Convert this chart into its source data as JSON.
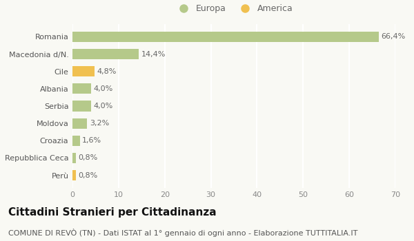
{
  "categories": [
    "Romania",
    "Macedonia d/N.",
    "Cile",
    "Albania",
    "Serbia",
    "Moldova",
    "Croazia",
    "Repubblica Ceca",
    "Perù"
  ],
  "values": [
    66.4,
    14.4,
    4.8,
    4.0,
    4.0,
    3.2,
    1.6,
    0.8,
    0.8
  ],
  "labels": [
    "66,4%",
    "14,4%",
    "4,8%",
    "4,0%",
    "4,0%",
    "3,2%",
    "1,6%",
    "0,8%",
    "0,8%"
  ],
  "colors": [
    "#b5c98a",
    "#b5c98a",
    "#f0c050",
    "#b5c98a",
    "#b5c98a",
    "#b5c98a",
    "#b5c98a",
    "#b5c98a",
    "#f0c050"
  ],
  "legend_europa_color": "#b5c98a",
  "legend_america_color": "#f0c050",
  "xlim": [
    0,
    70
  ],
  "xticks": [
    0,
    10,
    20,
    30,
    40,
    50,
    60,
    70
  ],
  "title": "Cittadini Stranieri per Cittadinanza",
  "subtitle": "COMUNE DI REVÒ (TN) - Dati ISTAT al 1° gennaio di ogni anno - Elaborazione TUTTITALIA.IT",
  "bg_color": "#f9f9f4",
  "grid_color": "#ffffff",
  "title_fontsize": 11,
  "subtitle_fontsize": 8,
  "label_fontsize": 8,
  "tick_fontsize": 8,
  "legend_fontsize": 9
}
